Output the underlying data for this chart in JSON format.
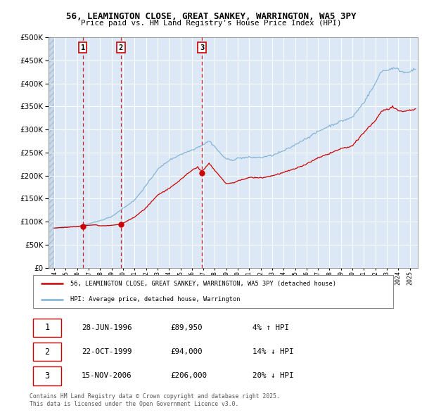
{
  "title_line1": "56, LEAMINGTON CLOSE, GREAT SANKEY, WARRINGTON, WA5 3PY",
  "title_line2": "Price paid vs. HM Land Registry's House Price Index (HPI)",
  "bg_color": "#dce8f5",
  "red_line_color": "#cc0000",
  "blue_line_color": "#7bafd4",
  "sale_dates": [
    1996.49,
    1999.81,
    2006.88
  ],
  "sale_prices": [
    89950,
    94000,
    206000
  ],
  "sale_labels": [
    "1",
    "2",
    "3"
  ],
  "legend_label_red": "56, LEAMINGTON CLOSE, GREAT SANKEY, WARRINGTON, WA5 3PY (detached house)",
  "legend_label_blue": "HPI: Average price, detached house, Warrington",
  "table_data": [
    [
      "1",
      "28-JUN-1996",
      "£89,950",
      "4% ↑ HPI"
    ],
    [
      "2",
      "22-OCT-1999",
      "£94,000",
      "14% ↓ HPI"
    ],
    [
      "3",
      "15-NOV-2006",
      "£206,000",
      "20% ↓ HPI"
    ]
  ],
  "footer_text": "Contains HM Land Registry data © Crown copyright and database right 2025.\nThis data is licensed under the Open Government Licence v3.0.",
  "ylim": [
    0,
    500000
  ],
  "xlim_start": 1993.5,
  "xlim_end": 2025.7
}
